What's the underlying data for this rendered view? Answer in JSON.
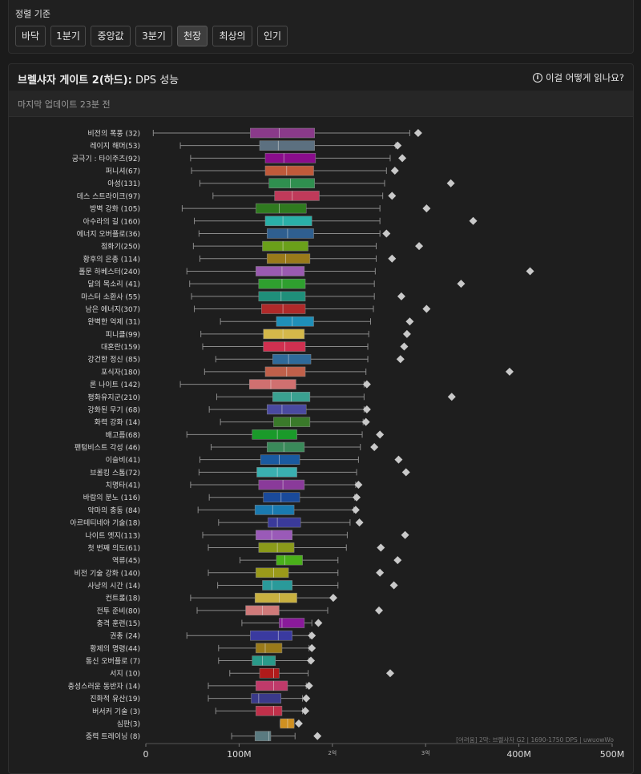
{
  "sort": {
    "title": "정렬 기준",
    "buttons": [
      "바닥",
      "1분기",
      "중앙값",
      "3분기",
      "천장",
      "최상의",
      "인기"
    ],
    "active": "천장"
  },
  "header": {
    "title_bold": "브렐샤자 게이트 2(하드):",
    "title_rest": " DPS 성능",
    "help": "이걸 어떻게 읽나요?",
    "updated": "마지막 업데이트 23분 전"
  },
  "watermark": "[어려움] 2막: 브렐샤자 G2 | 1690-1750 DPS | uwuowWo",
  "chart_data": {
    "type": "box",
    "xlim": [
      0,
      500
    ],
    "x_ticks": [
      {
        "v": 0,
        "label": "0",
        "small": false
      },
      {
        "v": 100,
        "label": "100M",
        "small": false
      },
      {
        "v": 200,
        "label": "2억",
        "small": true
      },
      {
        "v": 300,
        "label": "3억",
        "small": true
      },
      {
        "v": 400,
        "label": "400M",
        "small": false
      },
      {
        "v": 500,
        "label": "500M",
        "small": false
      }
    ],
    "colors": {
      "box_stroke": "#888888",
      "whisker": "#8a8a8a",
      "best": "#c9c9c9"
    },
    "rows": [
      {
        "label": "비전의 폭풍 (32)",
        "min": 8,
        "q1": 112,
        "median": 143,
        "q3": 181,
        "max": 283,
        "best": 292,
        "color": "#8a3a8a"
      },
      {
        "label": "레이지 해머(53)",
        "min": 37,
        "q1": 122,
        "median": 142,
        "q3": 181,
        "max": 268,
        "best": 270,
        "color": "#5c7080"
      },
      {
        "label": "궁극기 : 타이주츠(92)",
        "min": 48,
        "q1": 128,
        "median": 148,
        "q3": 182,
        "max": 262,
        "best": 275,
        "color": "#8a0d8c"
      },
      {
        "label": "퍼니셔(67)",
        "min": 49,
        "q1": 128,
        "median": 151,
        "q3": 180,
        "max": 258,
        "best": 267,
        "color": "#c05a3a"
      },
      {
        "label": "아성(131)",
        "min": 58,
        "q1": 132,
        "median": 155,
        "q3": 181,
        "max": 256,
        "best": 327,
        "color": "#2f8f4f"
      },
      {
        "label": "데스 스트라이크(97)",
        "min": 72,
        "q1": 138,
        "median": 157,
        "q3": 186,
        "max": 254,
        "best": 264,
        "color": "#c03a5a"
      },
      {
        "label": "방벽 강화 (105)",
        "min": 39,
        "q1": 118,
        "median": 143,
        "q3": 172,
        "max": 251,
        "best": 301,
        "color": "#2f7a1f"
      },
      {
        "label": "아수라의 길 (160)",
        "min": 52,
        "q1": 128,
        "median": 147,
        "q3": 178,
        "max": 251,
        "best": 351,
        "color": "#2ab0a8"
      },
      {
        "label": "에너지 오버플로(36)",
        "min": 57,
        "q1": 130,
        "median": 152,
        "q3": 180,
        "max": 251,
        "best": 258,
        "color": "#2f5f8f"
      },
      {
        "label": "점화기(250)",
        "min": 51,
        "q1": 125,
        "median": 147,
        "q3": 174,
        "max": 247,
        "best": 293,
        "color": "#6aa01a"
      },
      {
        "label": "황후의 은총 (114)",
        "min": 58,
        "q1": 130,
        "median": 150,
        "q3": 176,
        "max": 247,
        "best": 264,
        "color": "#9a7a1a"
      },
      {
        "label": "폴문 하베스터(240)",
        "min": 44,
        "q1": 118,
        "median": 146,
        "q3": 170,
        "max": 246,
        "best": 412,
        "color": "#9a5ab0"
      },
      {
        "label": "달의 목소리 (41)",
        "min": 47,
        "q1": 121,
        "median": 146,
        "q3": 171,
        "max": 245,
        "best": 338,
        "color": "#2f9f2f"
      },
      {
        "label": "마스터 소환사 (55)",
        "min": 49,
        "q1": 121,
        "median": 145,
        "q3": 171,
        "max": 245,
        "best": 274,
        "color": "#1f8f7a"
      },
      {
        "label": "남은 에너지(307)",
        "min": 52,
        "q1": 124,
        "median": 147,
        "q3": 171,
        "max": 244,
        "best": 301,
        "color": "#b02a2a"
      },
      {
        "label": "완벽한 억제 (31)",
        "min": 80,
        "q1": 140,
        "median": 157,
        "q3": 180,
        "max": 241,
        "best": 283,
        "color": "#1f8fb8"
      },
      {
        "label": "피니클(99)",
        "min": 59,
        "q1": 126,
        "median": 147,
        "q3": 170,
        "max": 239,
        "best": 280,
        "color": "#d4b84a"
      },
      {
        "label": "대혼란(159)",
        "min": 61,
        "q1": 126,
        "median": 149,
        "q3": 171,
        "max": 238,
        "best": 277,
        "color": "#d03050"
      },
      {
        "label": "강건한 정신 (85)",
        "min": 75,
        "q1": 136,
        "median": 153,
        "q3": 177,
        "max": 238,
        "best": 273,
        "color": "#2f6a9a"
      },
      {
        "label": "포식자(180)",
        "min": 63,
        "q1": 128,
        "median": 151,
        "q3": 171,
        "max": 236,
        "best": 390,
        "color": "#c0604a"
      },
      {
        "label": "론 나이트 (142)",
        "min": 37,
        "q1": 111,
        "median": 134,
        "q3": 161,
        "max": 234,
        "best": 237,
        "color": "#d07070"
      },
      {
        "label": "평화유지군(210)",
        "min": 76,
        "q1": 136,
        "median": 156,
        "q3": 176,
        "max": 234,
        "best": 328,
        "color": "#3aa090"
      },
      {
        "label": "강화된 무기 (68)",
        "min": 68,
        "q1": 130,
        "median": 146,
        "q3": 172,
        "max": 234,
        "best": 237,
        "color": "#4a4aa0"
      },
      {
        "label": "화력 강화 (14)",
        "min": 80,
        "q1": 137,
        "median": 155,
        "q3": 176,
        "max": 233,
        "best": 236,
        "color": "#3a7a2a"
      },
      {
        "label": "배고픔(68)",
        "min": 44,
        "q1": 114,
        "median": 141,
        "q3": 162,
        "max": 232,
        "best": 251,
        "color": "#1a9a2a"
      },
      {
        "label": "팬텀비스트 각성 (46)",
        "min": 70,
        "q1": 130,
        "median": 148,
        "q3": 170,
        "max": 230,
        "best": 245,
        "color": "#3a8a5a"
      },
      {
        "label": "이슬비(41)",
        "min": 58,
        "q1": 123,
        "median": 143,
        "q3": 165,
        "max": 228,
        "best": 271,
        "color": "#1a5aa0"
      },
      {
        "label": "브롤킹 스톰(72)",
        "min": 57,
        "q1": 119,
        "median": 141,
        "q3": 162,
        "max": 226,
        "best": 279,
        "color": "#3ab0b0"
      },
      {
        "label": "치명타(41)",
        "min": 48,
        "q1": 121,
        "median": 147,
        "q3": 170,
        "max": 225,
        "best": 228,
        "color": "#8a3a9a"
      },
      {
        "label": "바람의 분노 (116)",
        "min": 68,
        "q1": 126,
        "median": 145,
        "q3": 165,
        "max": 224,
        "best": 226,
        "color": "#1a4a9a"
      },
      {
        "label": "악마의 충동 (84)",
        "min": 56,
        "q1": 117,
        "median": 136,
        "q3": 159,
        "max": 223,
        "best": 225,
        "color": "#1a7ab0"
      },
      {
        "label": "아르테티네아 기술(18)",
        "min": 78,
        "q1": 131,
        "median": 141,
        "q3": 166,
        "max": 219,
        "best": 229,
        "color": "#3a3a9a"
      },
      {
        "label": "나이트 엣지(113)",
        "min": 61,
        "q1": 118,
        "median": 135,
        "q3": 157,
        "max": 216,
        "best": 278,
        "color": "#9a5ab8"
      },
      {
        "label": "첫 번째 의도(61)",
        "min": 67,
        "q1": 121,
        "median": 141,
        "q3": 159,
        "max": 215,
        "best": 252,
        "color": "#8a9a1a"
      },
      {
        "label": "역류(45)",
        "min": 101,
        "q1": 140,
        "median": 149,
        "q3": 168,
        "max": 206,
        "best": 270,
        "color": "#4ab01a"
      },
      {
        "label": "비전 기술 강화 (140)",
        "min": 67,
        "q1": 118,
        "median": 137,
        "q3": 153,
        "max": 206,
        "best": 251,
        "color": "#9a9a1a"
      },
      {
        "label": "사냥의 시간 (14)",
        "min": 77,
        "q1": 125,
        "median": 135,
        "q3": 157,
        "max": 206,
        "best": 266,
        "color": "#2a9a9a"
      },
      {
        "label": "컨트롤(18)",
        "min": 48,
        "q1": 117,
        "median": 143,
        "q3": 162,
        "max": 200,
        "best": 201,
        "color": "#c8b040"
      },
      {
        "label": "전투 준비(80)",
        "min": 55,
        "q1": 107,
        "median": 125,
        "q3": 143,
        "max": 195,
        "best": 250,
        "color": "#d07a7a"
      },
      {
        "label": "충격 훈련(15)",
        "min": 103,
        "q1": 143,
        "median": 146,
        "q3": 170,
        "max": 178,
        "best": 185,
        "color": "#8a1a9a"
      },
      {
        "label": "권총 (24)",
        "min": 44,
        "q1": 112,
        "median": 142,
        "q3": 157,
        "max": 176,
        "best": 178,
        "color": "#3a3aa0"
      },
      {
        "label": "황제의 명령(44)",
        "min": 78,
        "q1": 118,
        "median": 128,
        "q3": 146,
        "max": 175,
        "best": 178,
        "color": "#9a7a1a"
      },
      {
        "label": "통신 오버플로 (7)",
        "min": 78,
        "q1": 114,
        "median": 125,
        "q3": 139,
        "max": 175,
        "best": 177,
        "color": "#2a9a8a"
      },
      {
        "label": "서지 (10)",
        "min": 90,
        "q1": 122,
        "median": 137,
        "q3": 143,
        "max": 174,
        "best": 262,
        "color": "#b01a1a"
      },
      {
        "label": "충성스러운 동반자 (14)",
        "min": 67,
        "q1": 118,
        "median": 137,
        "q3": 152,
        "max": 172,
        "best": 175,
        "color": "#c03a6a"
      },
      {
        "label": "진화적 유산(19)",
        "min": 67,
        "q1": 113,
        "median": 121,
        "q3": 145,
        "max": 168,
        "best": 172,
        "color": "#3a3a8a"
      },
      {
        "label": "버서커 기술 (3)",
        "min": 75,
        "q1": 118,
        "median": 137,
        "q3": 146,
        "max": 168,
        "best": 171,
        "color": "#c0304a"
      },
      {
        "label": "심판(3)",
        "min": 144,
        "q1": 144,
        "median": 152,
        "q3": 159,
        "max": 159,
        "best": 164,
        "color": "#d09020"
      },
      {
        "label": "중력 트레이닝 (8)",
        "min": 92,
        "q1": 117,
        "median": 132,
        "q3": 134,
        "max": 160,
        "best": 184,
        "color": "#5a7a80"
      }
    ]
  }
}
